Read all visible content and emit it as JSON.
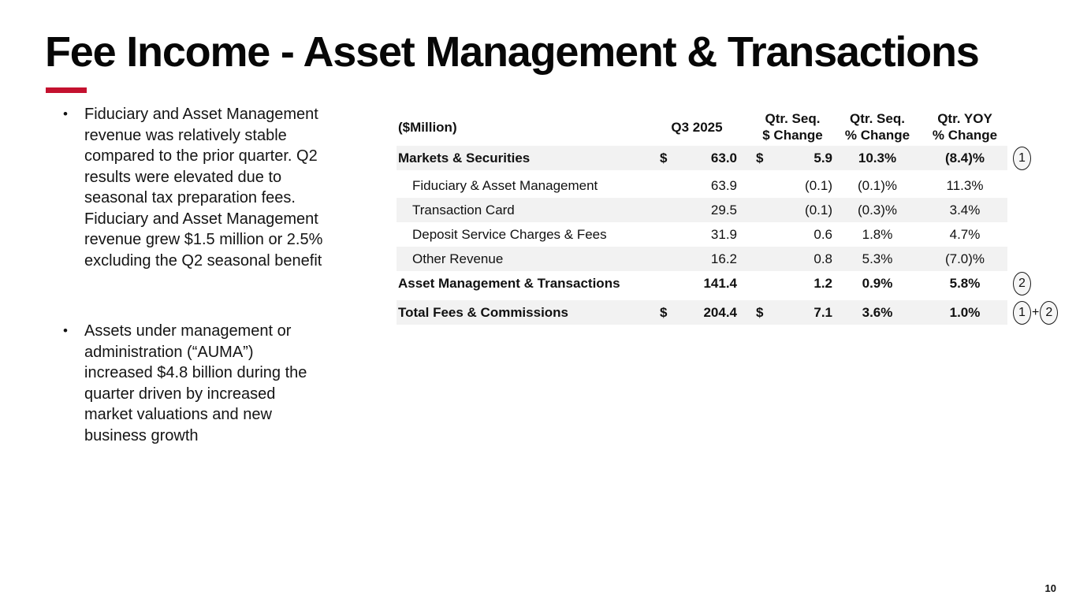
{
  "slide": {
    "title": "Fee Income - Asset Management & Transactions",
    "page_number": "10",
    "accent_color": "#C4112F"
  },
  "bullets": [
    {
      "marker": "•",
      "text": "Fiduciary and Asset Management\nrevenue was relatively stable\ncompared to the prior quarter. Q2\nresults were elevated due to\nseasonal tax preparation fees.\nFiduciary and Asset Management\nrevenue grew $1.5 million or 2.5%\nexcluding the Q2 seasonal benefit"
    },
    {
      "marker": "•",
      "text": "Assets under management or\nadministration (“AUMA”)\nincreased $4.8 billion during the\nquarter driven by increased\nmarket valuations and new\nbusiness growth"
    }
  ],
  "table": {
    "unit_label": "($Million)",
    "shaded_row_color": "#F2F2F2",
    "headers": {
      "q3": "Q3 2025",
      "seq_dollar": "Qtr. Seq.\n$ Change",
      "seq_pct": "Qtr. Seq.\n% Change",
      "yoy_pct": "Qtr. YOY\n% Change"
    },
    "rows": [
      {
        "label": "Markets & Securities",
        "dollar1": "$",
        "q3": "63.0",
        "dollar2": "$",
        "chg": "5.9",
        "pct": "10.3%",
        "yoy": "(8.4)%"
      },
      {
        "label": "Fiduciary & Asset Management",
        "dollar1": "",
        "q3": "63.9",
        "dollar2": "",
        "chg": "(0.1)",
        "pct": "(0.1)%",
        "yoy": "11.3%"
      },
      {
        "label": "Transaction Card",
        "dollar1": "",
        "q3": "29.5",
        "dollar2": "",
        "chg": "(0.1)",
        "pct": "(0.3)%",
        "yoy": "3.4%"
      },
      {
        "label": "Deposit Service Charges & Fees",
        "dollar1": "",
        "q3": "31.9",
        "dollar2": "",
        "chg": "0.6",
        "pct": "1.8%",
        "yoy": "4.7%"
      },
      {
        "label": "Other Revenue",
        "dollar1": "",
        "q3": "16.2",
        "dollar2": "",
        "chg": "0.8",
        "pct": "5.3%",
        "yoy": "(7.0)%"
      },
      {
        "label": "Asset Management & Transactions",
        "dollar1": "",
        "q3": "141.4",
        "dollar2": "",
        "chg": "1.2",
        "pct": "0.9%",
        "yoy": "5.8%"
      },
      {
        "label": "Total Fees & Commissions",
        "dollar1": "$",
        "q3": "204.4",
        "dollar2": "$",
        "chg": "7.1",
        "pct": "3.6%",
        "yoy": "1.0%"
      }
    ]
  },
  "annotations": {
    "note1": "1",
    "note2": "2",
    "total_left": "1",
    "total_plus": "+",
    "total_right": "2"
  }
}
